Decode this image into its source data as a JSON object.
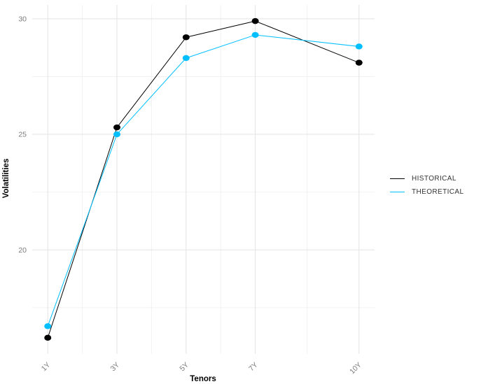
{
  "chart_data": {
    "type": "line",
    "title": "",
    "xlabel": "Tenors",
    "ylabel": "Volatilities",
    "categories": [
      "1Y",
      "3Y",
      "5Y",
      "7Y",
      "10Y"
    ],
    "x": [
      1,
      3,
      5,
      7,
      10
    ],
    "series": [
      {
        "name": "HISTORICAL",
        "color": "#000000",
        "values": [
          16.2,
          25.3,
          29.2,
          29.9,
          28.1
        ]
      },
      {
        "name": "THEORETICAL",
        "color": "#00BFFF",
        "values": [
          16.7,
          25.0,
          28.3,
          29.3,
          28.8
        ]
      }
    ],
    "y_ticks": [
      20,
      25,
      30
    ],
    "y_minor_gridlines": [
      17.5,
      22.5,
      27.5
    ],
    "x_minor_gridlines": [
      2,
      4,
      6,
      8.5
    ],
    "ylim": [
      15.5,
      30.6
    ],
    "xlim": [
      0.55,
      10.45
    ],
    "grid": true,
    "legend_position": "right",
    "colors": {
      "background": "#FFFFFF",
      "grid_major": "#E3E3E3",
      "grid_minor": "#F2F2F2",
      "tick_label": "#7B7B7B",
      "axis_title": "#000000",
      "legend_text": "#333333"
    }
  }
}
